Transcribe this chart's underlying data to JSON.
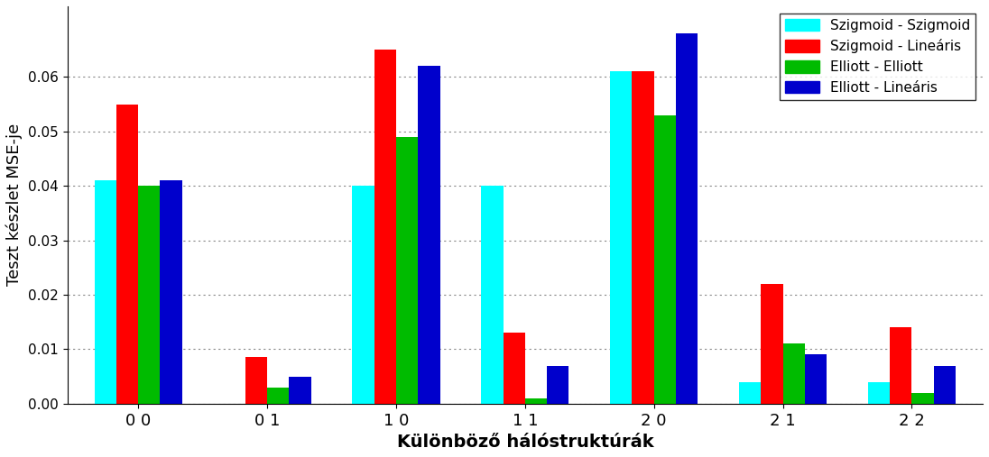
{
  "categories": [
    "0 0",
    "0 1",
    "1 0",
    "1 1",
    "2 0",
    "2 1",
    "2 2"
  ],
  "series": {
    "Szigmoid - Szigmoid": {
      "color": "#00FFFF",
      "values": [
        0.041,
        0.0,
        0.04,
        0.04,
        0.061,
        0.004,
        0.004
      ]
    },
    "Szigmoid - Lineáris": {
      "color": "#FF0000",
      "values": [
        0.055,
        0.0085,
        0.065,
        0.013,
        0.061,
        0.022,
        0.014
      ]
    },
    "Elliott - Elliott": {
      "color": "#00BB00",
      "values": [
        0.04,
        0.003,
        0.049,
        0.001,
        0.053,
        0.011,
        0.002
      ]
    },
    "Elliott - Lineáris": {
      "color": "#0000CC",
      "values": [
        0.041,
        0.005,
        0.062,
        0.007,
        0.068,
        0.009,
        0.007
      ]
    }
  },
  "ylabel": "Teszt készlet MSE-je",
  "xlabel": "Különböző hálóstruktúrák",
  "ylim": [
    0,
    0.073
  ],
  "yticks": [
    0,
    0.01,
    0.02,
    0.03,
    0.04,
    0.05,
    0.06
  ],
  "background_color": "#FFFFFF",
  "grid_color": "#888888",
  "plot_order": [
    "Szigmoid - Szigmoid",
    "Szigmoid - Lineáris",
    "Elliott - Elliott",
    "Elliott - Lineáris"
  ],
  "legend_order": [
    "Szigmoid - Szigmoid",
    "Szigmoid - Lineáris",
    "Elliott - Elliott",
    "Elliott - Lineáris"
  ],
  "bar_width": 0.17,
  "group_width": 1.0
}
